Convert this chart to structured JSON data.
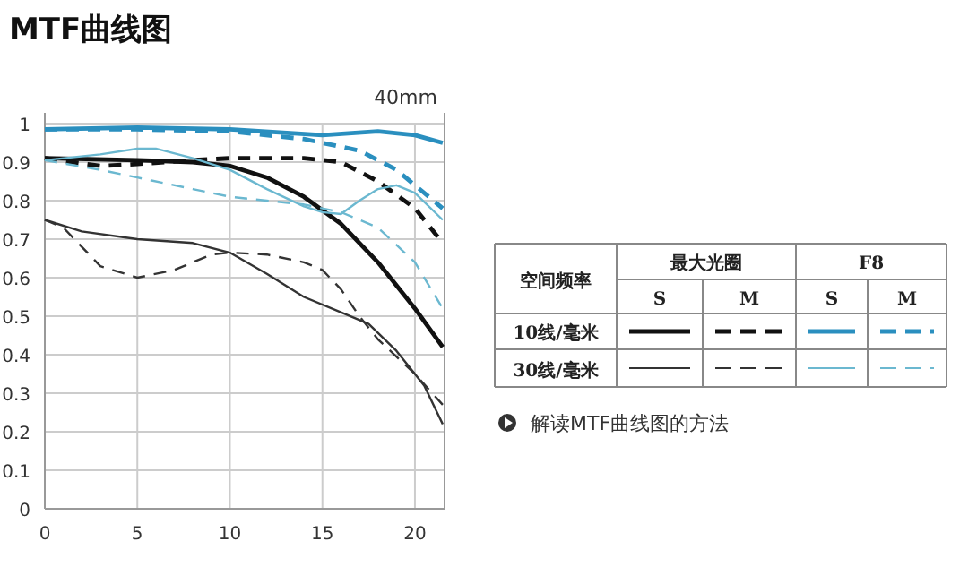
{
  "chart_data": {
    "type": "line",
    "title": "MTF曲线图",
    "grid": true,
    "xlim": [
      0,
      21.6
    ],
    "xticks": [
      0,
      5,
      10,
      15,
      20
    ],
    "ylim": [
      0,
      1
    ],
    "yticks": [
      0,
      0.1,
      0.2,
      0.3,
      0.4,
      0.5,
      0.6,
      0.7,
      0.8,
      0.9,
      1
    ],
    "annotations": [
      "40mm",
      "空间频率",
      "最大光圈",
      "F8",
      "S",
      "M",
      "S",
      "M",
      "10线/毫米",
      "30线/毫米",
      "解读MTF曲线图的方法"
    ],
    "series": [
      {
        "color": "#111111",
        "line_style": "solid",
        "x": [
          0,
          5,
          8,
          10,
          12,
          14,
          16,
          18,
          20,
          21.5
        ],
        "values": [
          0.91,
          0.905,
          0.9,
          0.89,
          0.86,
          0.81,
          0.74,
          0.64,
          0.52,
          0.42
        ]
      },
      {
        "color": "#111111",
        "line_style": "dashed",
        "x": [
          0,
          3,
          5,
          8,
          10,
          14,
          16,
          18,
          20,
          21.5
        ],
        "values": [
          0.91,
          0.89,
          0.895,
          0.905,
          0.91,
          0.91,
          0.9,
          0.85,
          0.78,
          0.69
        ]
      },
      {
        "color": "#2a8fbf",
        "line_style": "solid",
        "x": [
          0,
          5,
          10,
          15,
          18,
          20,
          21.5
        ],
        "values": [
          0.985,
          0.99,
          0.985,
          0.97,
          0.98,
          0.97,
          0.95
        ]
      },
      {
        "color": "#2a8fbf",
        "line_style": "dashed",
        "x": [
          0,
          5,
          10,
          14,
          17,
          19,
          21.5
        ],
        "values": [
          0.985,
          0.985,
          0.98,
          0.96,
          0.93,
          0.88,
          0.78
        ]
      },
      {
        "color": "#333333",
        "line_style": "solid",
        "x": [
          0,
          2,
          5,
          8,
          10,
          12,
          14,
          16,
          17.5,
          19,
          20.5,
          21.5
        ],
        "values": [
          0.75,
          0.72,
          0.7,
          0.69,
          0.665,
          0.61,
          0.55,
          0.51,
          0.48,
          0.41,
          0.32,
          0.22
        ]
      },
      {
        "color": "#333333",
        "line_style": "dashed",
        "x": [
          0,
          1,
          3,
          5,
          7,
          9,
          10,
          12,
          14,
          15,
          16,
          17,
          18,
          20,
          21.5
        ],
        "values": [
          0.75,
          0.73,
          0.63,
          0.6,
          0.62,
          0.66,
          0.665,
          0.66,
          0.64,
          0.62,
          0.57,
          0.5,
          0.44,
          0.35,
          0.27
        ]
      },
      {
        "color": "#6bb8d0",
        "line_style": "solid",
        "x": [
          0,
          3,
          5,
          6,
          8,
          10,
          12,
          14,
          15,
          16,
          17,
          18,
          19,
          20,
          21.5
        ],
        "values": [
          0.905,
          0.92,
          0.935,
          0.935,
          0.91,
          0.88,
          0.83,
          0.785,
          0.77,
          0.765,
          0.8,
          0.83,
          0.84,
          0.82,
          0.75
        ]
      },
      {
        "color": "#6bb8d0",
        "line_style": "dashed",
        "x": [
          0,
          3,
          5,
          8,
          10,
          12,
          14,
          16,
          18,
          20,
          21.5
        ],
        "values": [
          0.905,
          0.88,
          0.86,
          0.83,
          0.81,
          0.8,
          0.79,
          0.77,
          0.73,
          0.64,
          0.52
        ]
      }
    ]
  }
}
